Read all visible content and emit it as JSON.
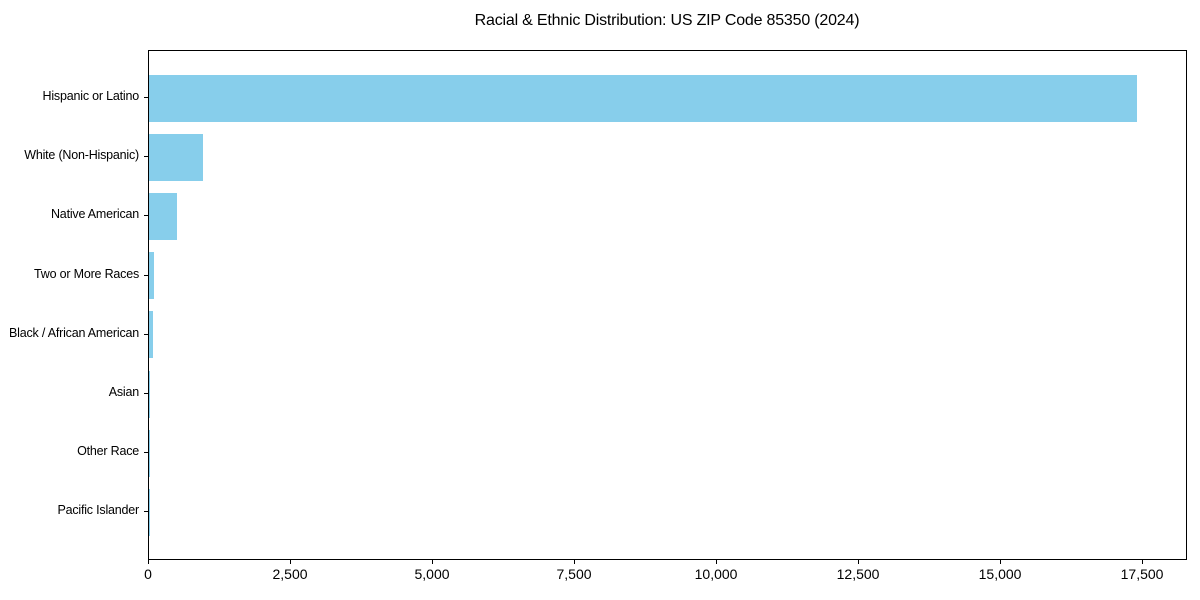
{
  "page": {
    "background_color": "#ffffff",
    "text_color": "#000000"
  },
  "chart_data": {
    "type": "bar",
    "orientation": "horizontal",
    "title": "Racial & Ethnic Distribution: US ZIP Code 85350 (2024)",
    "categories": [
      "Hispanic or Latino",
      "White (Non-Hispanic)",
      "Native American",
      "Two or More Races",
      "Black / African American",
      "Asian",
      "Other Race",
      "Pacific Islander"
    ],
    "values": [
      17400,
      945,
      495,
      95,
      75,
      25,
      10,
      3
    ],
    "bar_color": "#87CEEB",
    "axis_color": "#000000",
    "xlabel": "",
    "ylabel": "",
    "xlim": [
      0,
      18256
    ],
    "x_ticks": [
      0,
      2500,
      5000,
      7500,
      10000,
      12500,
      15000,
      17500
    ],
    "x_tick_labels": [
      "0",
      "2,500",
      "5,000",
      "7,500",
      "10,000",
      "12,500",
      "15,000",
      "17,500"
    ],
    "grid": false,
    "legend": null
  }
}
